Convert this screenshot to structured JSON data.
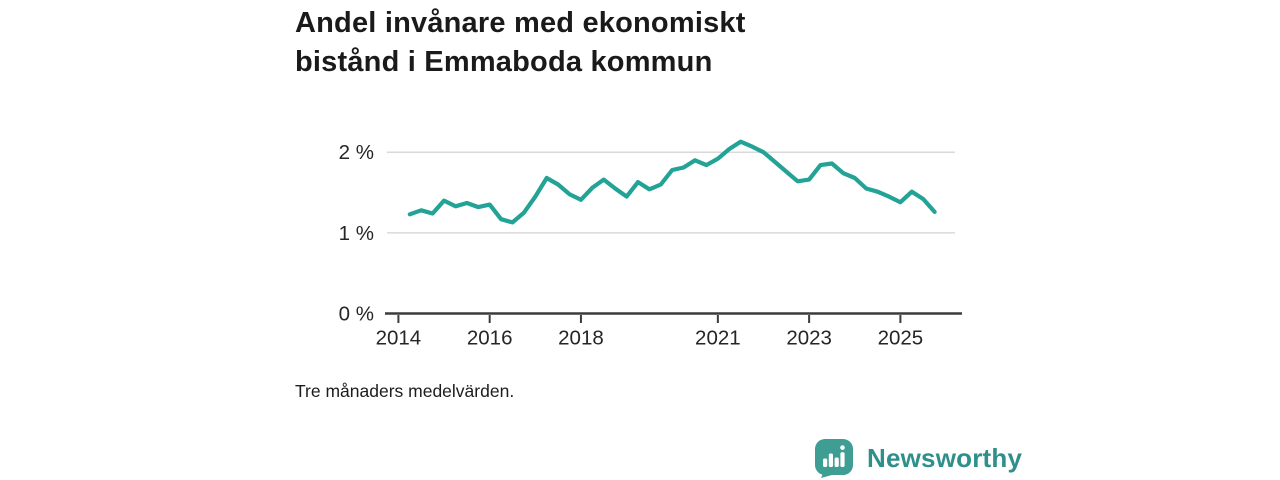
{
  "page": {
    "background": "#ffffff"
  },
  "header": {
    "title_lines": [
      "Andel invånare med ekonomiskt",
      "bistånd i Emmaboda kommun"
    ]
  },
  "footnote": {
    "text": "Tre månaders medelvärden."
  },
  "branding": {
    "name": "Newsworthy",
    "badge_color": "#3f9e93",
    "badge_glyph": "bar-chart-with-exclamation",
    "text_color": "#2e8f8b"
  },
  "chart_data": {
    "type": "line",
    "title": "Andel invånare med ekonomiskt bistånd i Emmaboda kommun",
    "note": "Tre månaders medelvärden.",
    "unit": "%",
    "line_color": "#23a296",
    "grid": "horizontal",
    "legend": "none",
    "xlim": [
      2013.75,
      2026.35
    ],
    "ylim": [
      0,
      2.35
    ],
    "x": [
      2014.25,
      2014.5,
      2014.75,
      2015.0,
      2015.25,
      2015.5,
      2015.75,
      2016.0,
      2016.25,
      2016.5,
      2016.75,
      2017.0,
      2017.25,
      2017.5,
      2017.75,
      2018.0,
      2018.25,
      2018.5,
      2018.75,
      2019.0,
      2019.25,
      2019.5,
      2019.75,
      2020.0,
      2020.25,
      2020.5,
      2020.75,
      2021.0,
      2021.25,
      2021.5,
      2021.75,
      2022.0,
      2022.25,
      2022.5,
      2022.75,
      2023.0,
      2023.25,
      2023.5,
      2023.75,
      2024.0,
      2024.25,
      2024.5,
      2024.75,
      2025.0,
      2025.25,
      2025.5,
      2025.75
    ],
    "values": [
      1.23,
      1.28,
      1.24,
      1.4,
      1.33,
      1.37,
      1.32,
      1.35,
      1.17,
      1.13,
      1.25,
      1.45,
      1.68,
      1.6,
      1.48,
      1.41,
      1.56,
      1.66,
      1.55,
      1.45,
      1.63,
      1.54,
      1.6,
      1.78,
      1.81,
      1.9,
      1.84,
      1.92,
      2.04,
      2.13,
      2.07,
      2.0,
      1.88,
      1.76,
      1.64,
      1.66,
      1.84,
      1.86,
      1.74,
      1.68,
      1.55,
      1.51,
      1.45,
      1.38,
      1.51,
      1.42,
      1.26
    ],
    "y_ticks": [
      {
        "value": 0,
        "label": "0 %"
      },
      {
        "value": 1,
        "label": "1 %"
      },
      {
        "value": 2,
        "label": "2 %"
      }
    ],
    "x_ticks": [
      {
        "year": 2014,
        "label": "2014"
      },
      {
        "year": 2016,
        "label": "2016"
      },
      {
        "year": 2018,
        "label": "2018"
      },
      {
        "year": 2021,
        "label": "2021"
      },
      {
        "year": 2023,
        "label": "2023"
      },
      {
        "year": 2025,
        "label": "2025"
      }
    ],
    "colors": {
      "gridline": "#d9d9d9",
      "axis": "#3c3c3c",
      "tick_label": "#262626"
    }
  }
}
